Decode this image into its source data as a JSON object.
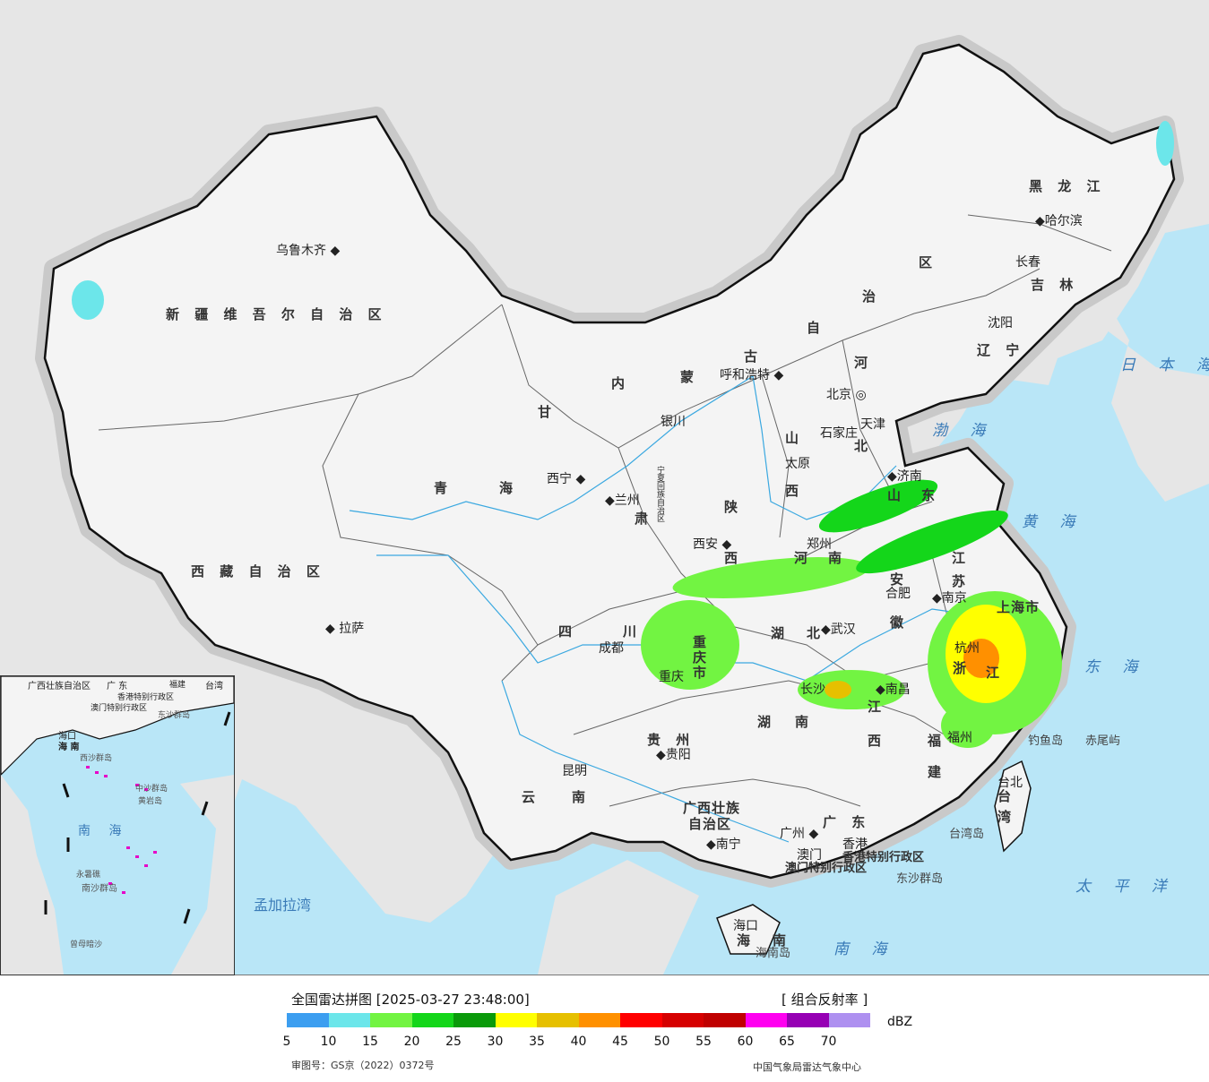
{
  "header": {
    "title": "全国雷达拼图 [2025-03-27 23:48:00]",
    "product": "[ 组合反射率 ]",
    "unit": "dBZ"
  },
  "legend": {
    "colors": [
      "#3c9ef0",
      "#6ce6ea",
      "#72f442",
      "#14d61a",
      "#0a9a0a",
      "#ffff00",
      "#e6c000",
      "#ff9000",
      "#ff0000",
      "#d60000",
      "#c00000",
      "#ff00f0",
      "#9600b4",
      "#ae90f0"
    ],
    "ticks": [
      "5",
      "10",
      "15",
      "20",
      "25",
      "30",
      "35",
      "40",
      "45",
      "50",
      "55",
      "60",
      "65",
      "70"
    ]
  },
  "footer": {
    "approval": "审图号：GS京（2022）0372号",
    "source": "中国气象局雷达气象中心"
  },
  "map": {
    "provinces": [
      "新 疆 维 吾 尔 自 治 区",
      "西 藏 自 治 区",
      "青",
      "海",
      "甘",
      "肃",
      "内",
      "蒙",
      "古",
      "自",
      "治",
      "区",
      "黑 龙 江",
      "吉 林",
      "辽 宁",
      "河",
      "北",
      "山",
      "西",
      "陕",
      "西",
      "四",
      "川",
      "云",
      "南",
      "贵 州",
      "湖",
      "北",
      "湖",
      "南",
      "广西壮族",
      "自治区",
      "广 东",
      "福",
      "建",
      "江",
      "西",
      "安",
      "徽",
      "江",
      "苏",
      "浙",
      "江",
      "山",
      "东",
      "河",
      "南",
      "海",
      "南",
      "台",
      "湾",
      "上海市",
      "重",
      "庆",
      "市",
      "宁夏回族自治区",
      "香港特别行政区",
      "澳门特别行政区"
    ],
    "cities": [
      "乌鲁木齐",
      "拉萨",
      "西宁",
      "兰州",
      "银川",
      "呼和浩特",
      "北京",
      "天津",
      "石家庄",
      "太原",
      "济南",
      "郑州",
      "西安",
      "成都",
      "重庆",
      "武汉",
      "合肥",
      "南京",
      "杭州",
      "南昌",
      "长沙",
      "贵阳",
      "昆明",
      "南宁",
      "广州",
      "香港",
      "澳门",
      "海口",
      "福州",
      "台北",
      "哈尔滨",
      "长春",
      "沈阳"
    ],
    "seas": [
      "日 本 海",
      "渤 海",
      "黄 海",
      "东 海",
      "太 平 洋",
      "南 海",
      "孟加拉湾"
    ],
    "islands": [
      "钓鱼岛",
      "赤尾屿",
      "台湾岛",
      "东沙群岛",
      "海南岛"
    ],
    "inset": {
      "labels": [
        "广西壮族自治区",
        "广 东",
        "福建",
        "台湾",
        "香港特别行政区",
        "澳门特别行政区",
        "东沙群岛",
        "海口",
        "海 南",
        "西沙群岛",
        "中沙群岛",
        "黄岩岛",
        "南 海",
        "永暑礁",
        "南沙群岛",
        "曾母暗沙"
      ]
    }
  }
}
